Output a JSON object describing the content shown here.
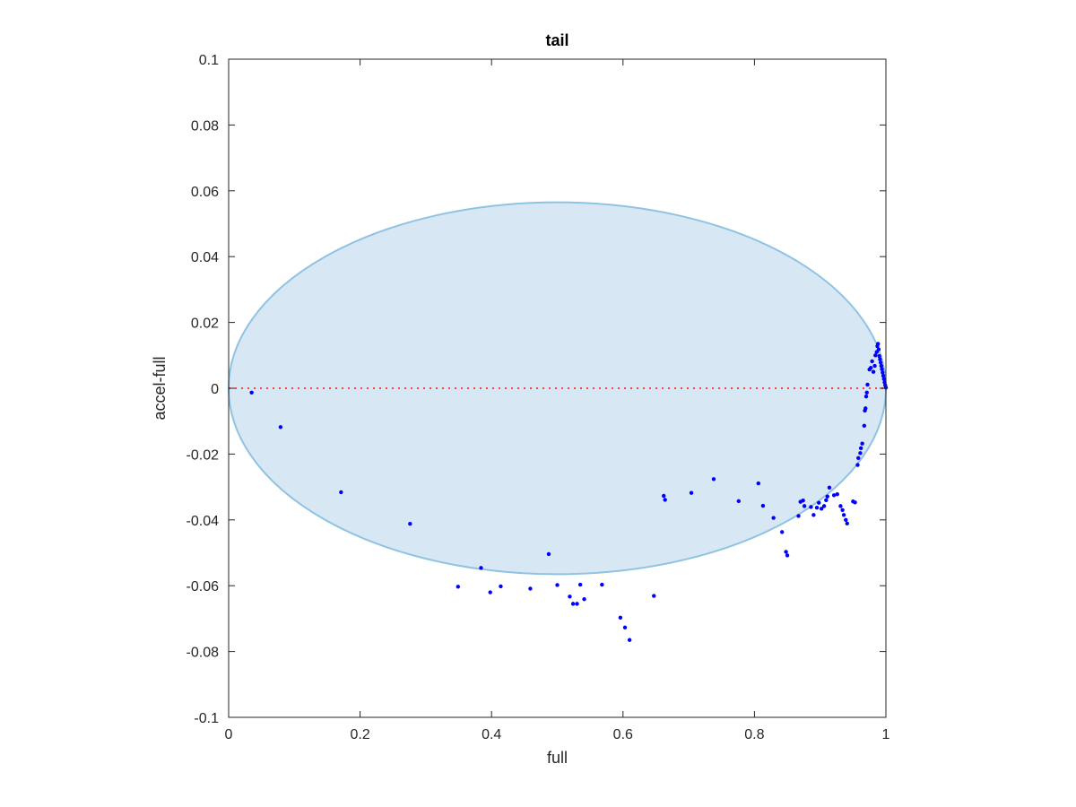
{
  "chart_data": {
    "type": "scatter",
    "title": "tail",
    "xlabel": "full",
    "ylabel": "accel-full",
    "xlim": [
      0,
      1
    ],
    "ylim": [
      -0.1,
      0.1
    ],
    "xticks": [
      0,
      0.2,
      0.4,
      0.6,
      0.8,
      1
    ],
    "xtick_labels": [
      "0",
      "0.2",
      "0.4",
      "0.6",
      "0.8",
      "1"
    ],
    "yticks": [
      -0.1,
      -0.08,
      -0.06,
      -0.04,
      -0.02,
      0,
      0.02,
      0.04,
      0.06,
      0.08,
      0.1
    ],
    "ytick_labels": [
      "-0.1",
      "-0.08",
      "-0.06",
      "-0.04",
      "-0.02",
      "0",
      "0.02",
      "0.04",
      "0.06",
      "0.08",
      "0.1"
    ],
    "grid": false,
    "ellipse": {
      "center": [
        0.5,
        0
      ],
      "semi_axes": [
        0.5,
        0.0565
      ],
      "fill_color": "#d8e7f4",
      "edge_color": "#8fc3e2"
    },
    "reference_line": {
      "y": 0,
      "style": "dotted",
      "color": "#ff4040"
    },
    "series": [
      {
        "marker_color": "#0000ff",
        "points": [
          [
            0.035,
            -0.0013
          ],
          [
            0.079,
            -0.0118
          ],
          [
            0.171,
            -0.0316
          ],
          [
            0.276,
            -0.0412
          ],
          [
            0.349,
            -0.0603
          ],
          [
            0.384,
            -0.0546
          ],
          [
            0.398,
            -0.062
          ],
          [
            0.414,
            -0.0602
          ],
          [
            0.459,
            -0.0609
          ],
          [
            0.487,
            -0.0504
          ],
          [
            0.5,
            -0.0598
          ],
          [
            0.519,
            -0.0633
          ],
          [
            0.524,
            -0.0655
          ],
          [
            0.53,
            -0.0655
          ],
          [
            0.535,
            -0.0597
          ],
          [
            0.541,
            -0.0641
          ],
          [
            0.568,
            -0.0597
          ],
          [
            0.596,
            -0.0697
          ],
          [
            0.603,
            -0.0727
          ],
          [
            0.61,
            -0.0765
          ],
          [
            0.647,
            -0.0631
          ],
          [
            0.662,
            -0.0327
          ],
          [
            0.664,
            -0.0339
          ],
          [
            0.704,
            -0.0318
          ],
          [
            0.738,
            -0.0276
          ],
          [
            0.776,
            -0.0343
          ],
          [
            0.806,
            -0.0289
          ],
          [
            0.813,
            -0.0357
          ],
          [
            0.829,
            -0.0394
          ],
          [
            0.842,
            -0.0437
          ],
          [
            0.848,
            -0.0497
          ],
          [
            0.85,
            -0.0508
          ],
          [
            0.867,
            -0.0388
          ],
          [
            0.87,
            -0.0345
          ],
          [
            0.874,
            -0.0341
          ],
          [
            0.876,
            -0.0358
          ],
          [
            0.886,
            -0.0361
          ],
          [
            0.89,
            -0.0385
          ],
          [
            0.895,
            -0.0363
          ],
          [
            0.898,
            -0.0348
          ],
          [
            0.902,
            -0.0366
          ],
          [
            0.906,
            -0.0358
          ],
          [
            0.909,
            -0.034
          ],
          [
            0.911,
            -0.0329
          ],
          [
            0.914,
            -0.0302
          ],
          [
            0.921,
            -0.0325
          ],
          [
            0.926,
            -0.0322
          ],
          [
            0.931,
            -0.0358
          ],
          [
            0.934,
            -0.037
          ],
          [
            0.936,
            -0.0385
          ],
          [
            0.939,
            -0.04
          ],
          [
            0.941,
            -0.0411
          ],
          [
            0.95,
            -0.0344
          ],
          [
            0.953,
            -0.0347
          ],
          [
            0.957,
            -0.0233
          ],
          [
            0.958,
            -0.0212
          ],
          [
            0.961,
            -0.0197
          ],
          [
            0.962,
            -0.0182
          ],
          [
            0.964,
            -0.0168
          ],
          [
            0.967,
            -0.0114
          ],
          [
            0.968,
            -0.0068
          ],
          [
            0.969,
            -0.0061
          ],
          [
            0.97,
            -0.0025
          ],
          [
            0.971,
            -0.0013
          ],
          [
            0.972,
            0.0011
          ],
          [
            0.975,
            0.0057
          ],
          [
            0.977,
            0.0062
          ],
          [
            0.979,
            0.0082
          ],
          [
            0.981,
            0.005
          ],
          [
            0.983,
            0.0068
          ],
          [
            0.984,
            0.01
          ],
          [
            0.986,
            0.011
          ],
          [
            0.987,
            0.0128
          ],
          [
            0.988,
            0.0135
          ],
          [
            0.989,
            0.0118
          ],
          [
            0.99,
            0.0098
          ],
          [
            0.991,
            0.0088
          ],
          [
            0.992,
            0.0078
          ],
          [
            0.993,
            0.0068
          ],
          [
            0.994,
            0.0058
          ],
          [
            0.995,
            0.0048
          ],
          [
            0.996,
            0.0038
          ],
          [
            0.997,
            0.0028
          ],
          [
            0.998,
            0.0018
          ],
          [
            0.999,
            0.0009
          ],
          [
            1.0,
            0.0002
          ]
        ]
      }
    ]
  }
}
